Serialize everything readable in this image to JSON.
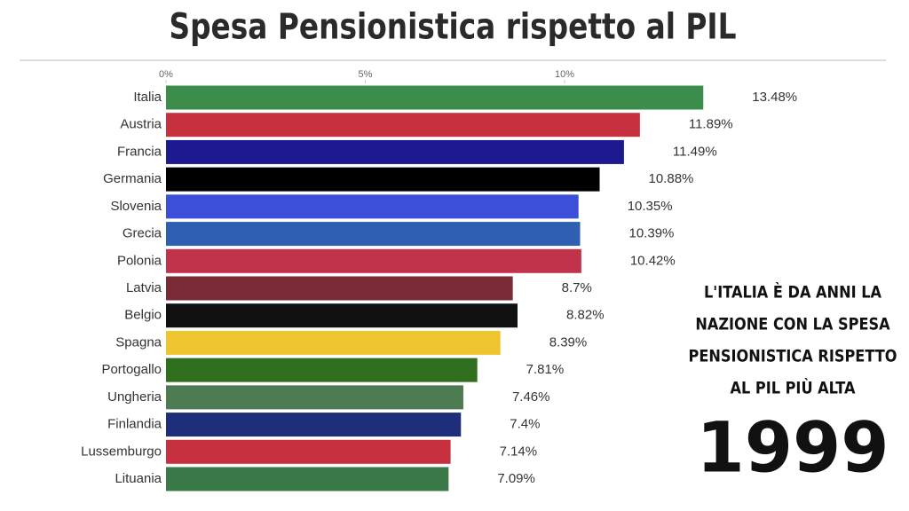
{
  "chart_data": {
    "type": "bar",
    "orientation": "horizontal",
    "title": "Spesa Pensionistica rispetto al PIL",
    "categories": [
      "Italia",
      "Austria",
      "Francia",
      "Germania",
      "Slovenia",
      "Grecia",
      "Polonia",
      "Latvia",
      "Belgio",
      "Spagna",
      "Portogallo",
      "Ungheria",
      "Finlandia",
      "Lussemburgo",
      "Lituania"
    ],
    "values": [
      13.48,
      11.89,
      11.49,
      10.88,
      10.35,
      10.39,
      10.42,
      8.7,
      8.82,
      8.39,
      7.81,
      7.46,
      7.4,
      7.14,
      7.09
    ],
    "value_labels": [
      "13.48%",
      "11.89%",
      "11.49%",
      "10.88%",
      "10.35%",
      "10.39%",
      "10.42%",
      "8.7%",
      "8.82%",
      "8.39%",
      "7.81%",
      "7.46%",
      "7.4%",
      "7.14%",
      "7.09%"
    ],
    "colors": [
      "#3c8d4c",
      "#c7303f",
      "#1c1a8e",
      "#000000",
      "#3b4fd9",
      "#2f5fb0",
      "#c0334a",
      "#7a2a35",
      "#111111",
      "#efc52f",
      "#2e6e1e",
      "#4f7b52",
      "#1f2e7a",
      "#c7303f",
      "#3b7a48"
    ],
    "xlim": [
      0,
      15
    ],
    "xticks": [
      {
        "value": 0,
        "label": "0%"
      },
      {
        "value": 5,
        "label": "5%"
      },
      {
        "value": 10,
        "label": "10%"
      }
    ],
    "annotation_lines": [
      "L'ITALIA È DA ANNI LA",
      "NAZIONE CON LA SPESA",
      "PENSIONISTICA RISPETTO",
      "AL PIL PIÙ ALTA"
    ],
    "year": "1999"
  }
}
